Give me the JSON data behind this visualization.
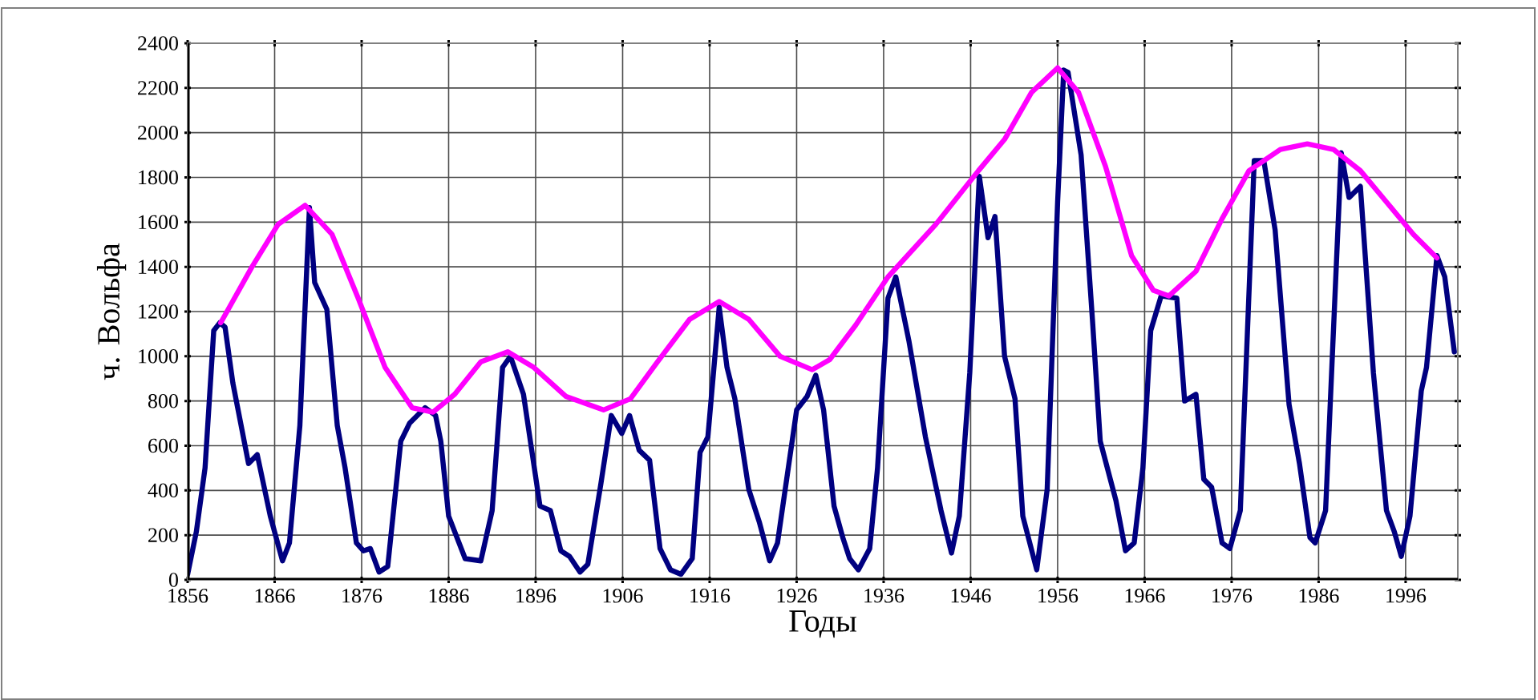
{
  "chart_data": {
    "type": "line",
    "xlabel": "Годы",
    "ylabel": "ч. Вольфа",
    "xlim": [
      1856,
      2002
    ],
    "ylim": [
      0,
      2400
    ],
    "xticks": [
      1856,
      1866,
      1876,
      1886,
      1896,
      1906,
      1916,
      1926,
      1936,
      1946,
      1956,
      1966,
      1976,
      1986,
      1996
    ],
    "yticks": [
      0,
      200,
      400,
      600,
      800,
      1000,
      1200,
      1400,
      1600,
      1800,
      2000,
      2200,
      2400
    ],
    "grid": true,
    "series": [
      {
        "color": "#000080",
        "x": [
          1856,
          1857,
          1858,
          1859,
          1859.7,
          1860.3,
          1861.2,
          1863,
          1864,
          1865.5,
          1866.9,
          1867.7,
          1868.9,
          1870,
          1870.6,
          1872,
          1873.2,
          1874.1,
          1875.4,
          1876.2,
          1877,
          1878,
          1879,
          1880.5,
          1881.5,
          1883.3,
          1884.5,
          1885.1,
          1886,
          1887.9,
          1889.7,
          1891,
          1892.2,
          1893.1,
          1894.6,
          1896.5,
          1897.7,
          1898.9,
          1899.9,
          1901.1,
          1902,
          1903.5,
          1904.7,
          1905.9,
          1906.8,
          1907.9,
          1909.1,
          1910.3,
          1911.5,
          1912.7,
          1914,
          1914.9,
          1915.8,
          1917.1,
          1918,
          1918.9,
          1920.5,
          1921.7,
          1922.9,
          1923.8,
          1926,
          1927.2,
          1928.2,
          1929.1,
          1930.3,
          1931.3,
          1932.1,
          1933.1,
          1934.4,
          1935.3,
          1936.5,
          1937.4,
          1938.9,
          1940.8,
          1942.6,
          1943.8,
          1944.7,
          1945.9,
          1947,
          1948,
          1948.8,
          1949.9,
          1951.1,
          1952,
          1953.6,
          1954.8,
          1956,
          1956.7,
          1957.2,
          1958.7,
          1960,
          1960.9,
          1962.7,
          1963.8,
          1964.8,
          1965.8,
          1966.7,
          1967.9,
          1969.7,
          1970.6,
          1971.9,
          1972.8,
          1973.7,
          1974.9,
          1975.8,
          1977,
          1978.6,
          1979.7,
          1981,
          1982.6,
          1983.8,
          1985,
          1985.6,
          1986.8,
          1988.6,
          1989.5,
          1990.8,
          1992.3,
          1993.8,
          1994.7,
          1995.5,
          1996.5,
          1997.8,
          1998.4,
          1999.6,
          2000.5,
          2001.6
        ],
        "values": [
          25,
          215,
          500,
          1115,
          1150,
          1130,
          880,
          520,
          560,
          285,
          85,
          165,
          690,
          1665,
          1330,
          1210,
          690,
          500,
          165,
          130,
          140,
          35,
          60,
          620,
          700,
          770,
          735,
          620,
          285,
          95,
          85,
          310,
          950,
          1000,
          830,
          330,
          310,
          130,
          105,
          35,
          70,
          430,
          735,
          655,
          735,
          580,
          535,
          140,
          45,
          25,
          95,
          570,
          640,
          1220,
          950,
          810,
          405,
          260,
          85,
          165,
          760,
          820,
          915,
          760,
          330,
          190,
          95,
          45,
          140,
          500,
          1260,
          1355,
          1070,
          640,
          310,
          120,
          285,
          925,
          1805,
          1530,
          1625,
          1000,
          810,
          285,
          45,
          405,
          1690,
          2280,
          2270,
          1900,
          1165,
          620,
          355,
          130,
          165,
          500,
          1115,
          1270,
          1260,
          800,
          830,
          450,
          415,
          165,
          140,
          310,
          1875,
          1875,
          1565,
          785,
          520,
          190,
          165,
          310,
          1910,
          1710,
          1760,
          925,
          310,
          215,
          105,
          285,
          845,
          950,
          1450,
          1355,
          1020
        ]
      },
      {
        "color": "#ff00ff",
        "x": [
          1859.8,
          1863.4,
          1866.4,
          1869.5,
          1872.6,
          1875.6,
          1878.7,
          1881.8,
          1884.2,
          1886.7,
          1889.7,
          1892.8,
          1895.8,
          1899.5,
          1903.8,
          1906.9,
          1910,
          1913.7,
          1917.1,
          1920.5,
          1924.1,
          1927.8,
          1929.8,
          1932.8,
          1936.5,
          1942,
          1946.9,
          1949.9,
          1953,
          1956,
          1958.4,
          1961.5,
          1964.5,
          1967,
          1968.8,
          1971.9,
          1974.9,
          1978,
          1981.6,
          1984.7,
          1987.7,
          1990.8,
          1993.8,
          1996.9,
          1999.6
        ],
        "values": [
          1150,
          1400,
          1590,
          1675,
          1545,
          1260,
          950,
          770,
          750,
          830,
          975,
          1020,
          950,
          820,
          760,
          810,
          975,
          1165,
          1245,
          1165,
          1000,
          940,
          985,
          1140,
          1355,
          1590,
          1830,
          1970,
          2180,
          2290,
          2180,
          1850,
          1450,
          1295,
          1270,
          1380,
          1615,
          1830,
          1925,
          1950,
          1925,
          1830,
          1690,
          1545,
          1440
        ]
      }
    ]
  }
}
